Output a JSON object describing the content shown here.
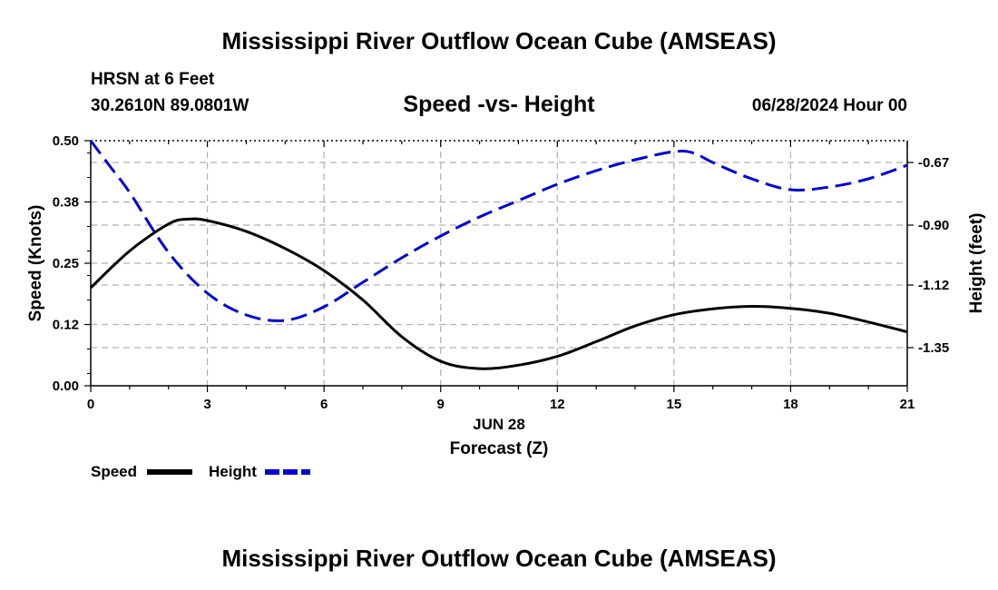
{
  "page": {
    "title_top": "Mississippi River Outflow Ocean Cube (AMSEAS)",
    "title_bottom": "Mississippi River Outflow Ocean Cube (AMSEAS)",
    "station": "HRSN at 6 Feet",
    "coords": "30.2610N  89.0801W",
    "subtitle": "Speed -vs- Height",
    "datetime": "06/28/2024 Hour 00"
  },
  "colors": {
    "speed": "#000000",
    "height": "#0000cc",
    "grid": "#b0b0b0"
  },
  "chart_data": {
    "type": "line",
    "title": "Speed -vs- Height",
    "xlabel": "Forecast (Z)",
    "xlabel_date": "JUN 28",
    "ylabel_left": "Speed (Knots)",
    "ylabel_right": "Height (feet)",
    "xlim": [
      0,
      21
    ],
    "ylim_left": [
      0,
      0.5
    ],
    "ylim_right": [
      -1.49,
      -0.59
    ],
    "x_ticks": [
      0,
      3,
      6,
      9,
      12,
      15,
      18,
      21
    ],
    "x_tick_labels": [
      "0",
      "3",
      "6",
      "9",
      "12",
      "15",
      "18",
      "21"
    ],
    "y_left_ticks": [
      0,
      0.125,
      0.25,
      0.375,
      0.5
    ],
    "y_left_tick_labels": [
      "0.00",
      "0.12",
      "0.25",
      "0.38",
      "0.50"
    ],
    "y_right_ticks": [
      -0.67,
      -0.9,
      -1.12,
      -1.35
    ],
    "y_right_tick_labels": [
      "-0.67",
      "-0.90",
      "-1.12",
      "-1.35"
    ],
    "legend": [
      "Speed",
      "Height"
    ],
    "series": [
      {
        "name": "Speed",
        "axis": "left",
        "style": "solid",
        "x": [
          0,
          1,
          2,
          2.5,
          3,
          4,
          5,
          6,
          7,
          8,
          9,
          10,
          11,
          12,
          13,
          14,
          15,
          16,
          17,
          18,
          19,
          20,
          21
        ],
        "values": [
          0.2,
          0.275,
          0.33,
          0.34,
          0.337,
          0.315,
          0.28,
          0.235,
          0.175,
          0.1,
          0.05,
          0.035,
          0.042,
          0.06,
          0.09,
          0.122,
          0.145,
          0.157,
          0.162,
          0.158,
          0.148,
          0.13,
          0.11
        ]
      },
      {
        "name": "Height",
        "axis": "right",
        "style": "dashed",
        "x": [
          0,
          0.5,
          1,
          2,
          3,
          4,
          5,
          6,
          7,
          8,
          9,
          10,
          11,
          12,
          13,
          14,
          15,
          15.5,
          16,
          17,
          18,
          19,
          20,
          21
        ],
        "values": [
          -0.59,
          -0.685,
          -0.78,
          -1.0,
          -1.15,
          -1.23,
          -1.25,
          -1.2,
          -1.11,
          -1.02,
          -0.94,
          -0.87,
          -0.81,
          -0.75,
          -0.7,
          -0.66,
          -0.63,
          -0.635,
          -0.67,
          -0.73,
          -0.77,
          -0.76,
          -0.73,
          -0.68
        ]
      }
    ]
  }
}
